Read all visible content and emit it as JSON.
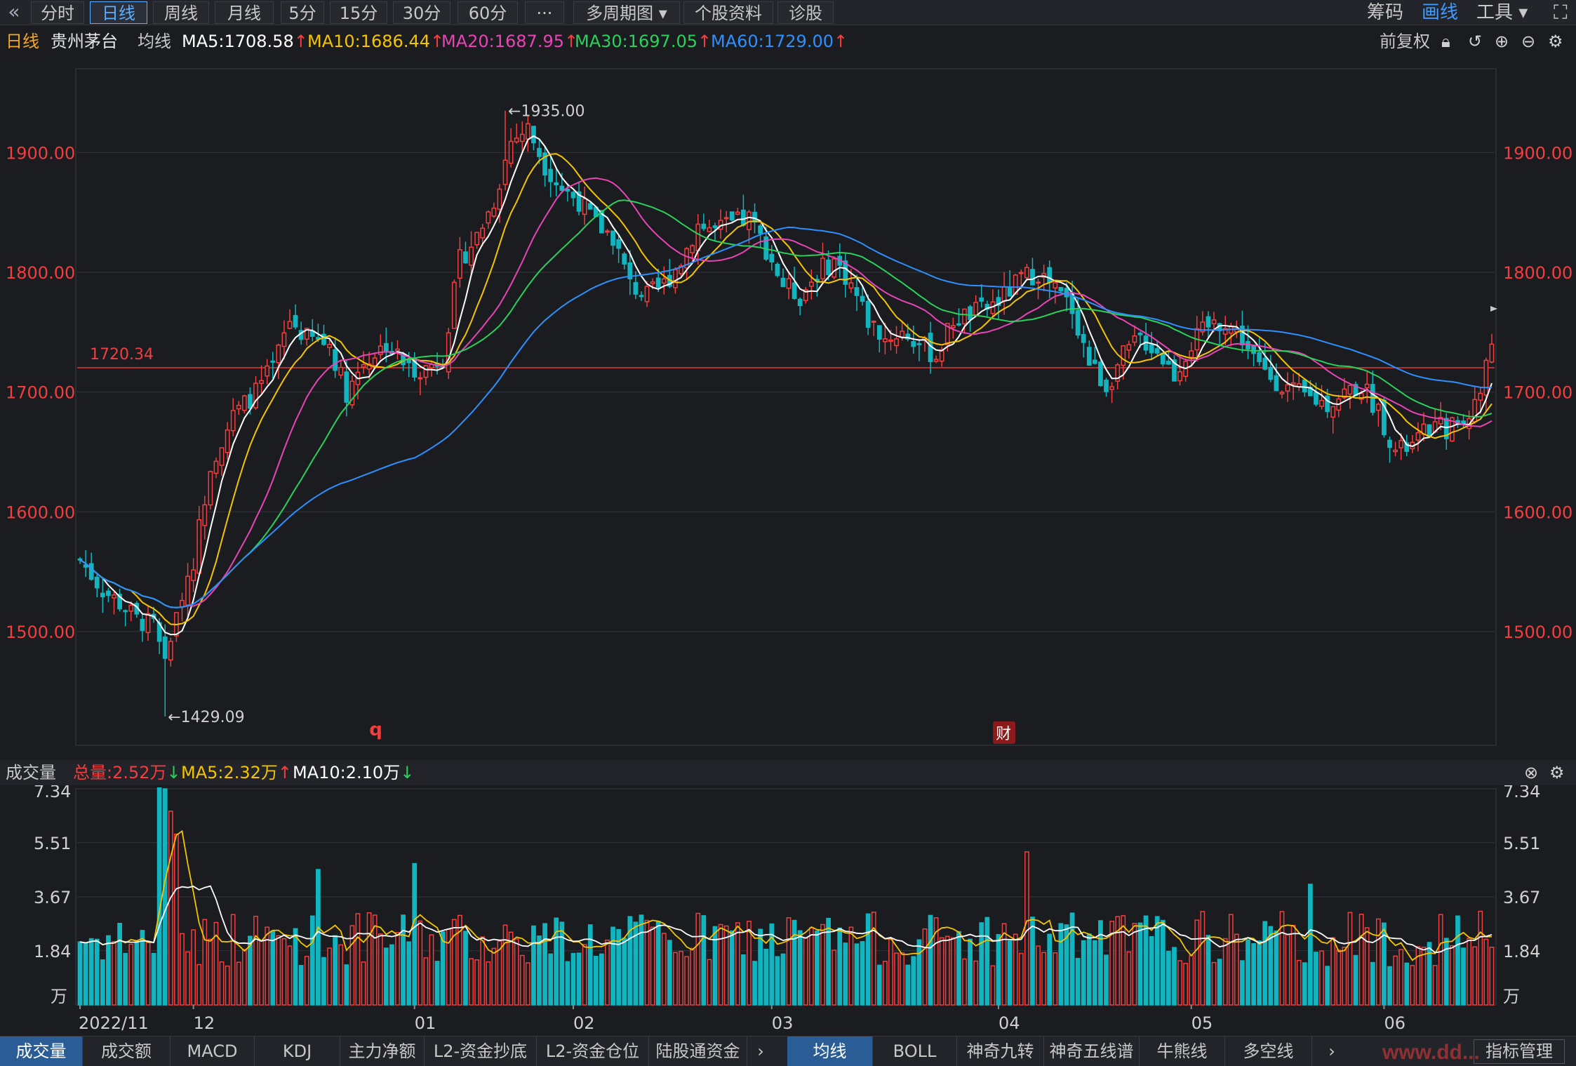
{
  "toolbar": {
    "back_icon": "double-chevron-left-icon",
    "periods": [
      "分时",
      "日线",
      "周线",
      "月线",
      "5分",
      "15分",
      "30分",
      "60分",
      "···",
      "多周期图 ▾",
      "个股资料",
      "诊股"
    ],
    "active_period": "日线",
    "right": [
      "筹码",
      "画线",
      "工具 ▾"
    ],
    "fullscreen_icon": "expand-icon"
  },
  "info": {
    "period": "日线",
    "stock_name": "贵州茅台",
    "ma_label": "均线",
    "ma5": "MA5:1708.58",
    "ma10": "MA10:1686.44",
    "ma20": "MA20:1687.95",
    "ma30": "MA30:1697.05",
    "ma60": "MA60:1729.00",
    "adjust": "前复权",
    "icons": [
      "lock-icon",
      "undo-icon",
      "zoom-in-icon",
      "zoom-out-icon",
      "settings-icon"
    ]
  },
  "volume_info": {
    "label": "成交量",
    "total": "总量:2.52万",
    "ma5": "MA5:2.32万",
    "ma10": "MA10:2.10万",
    "icons": [
      "close-icon",
      "settings-icon"
    ]
  },
  "bottom_tabs_left": [
    "成交量",
    "成交额",
    "MACD",
    "KDJ",
    "主力净额",
    "L2-资金抄底",
    "L2-资金仓位",
    "陆股通资金"
  ],
  "bottom_tabs_right": [
    "均线",
    "BOLL",
    "神奇九转",
    "神奇五线谱",
    "牛熊线",
    "多空线"
  ],
  "bottom_right_button": "指标管理",
  "watermark": "www.dd...",
  "colors": {
    "up": "#f23e3e",
    "down": "#12b5bf",
    "ma5": "#ffffff",
    "ma10": "#f5c400",
    "ma20": "#e844b6",
    "ma30": "#2ad15a",
    "ma60": "#2e90ff",
    "ref_line": "#e03a3a"
  },
  "chart_data": {
    "type": "candlestick",
    "title": "贵州茅台 日线",
    "price_axis": {
      "ticks": [
        1500,
        1600,
        1700,
        1800,
        1900
      ],
      "tick_labels": [
        "1500.00",
        "1600.00",
        "1700.00",
        "1800.00",
        "1900.00"
      ],
      "range": [
        1405,
        1970
      ]
    },
    "volume_axis": {
      "ticks": [
        0,
        1.84,
        3.67,
        5.51,
        7.34
      ],
      "tick_labels": [
        "万",
        "1.84",
        "3.67",
        "5.51",
        "7.34"
      ],
      "unit": "万",
      "range": [
        0,
        7.34
      ]
    },
    "x_labels": [
      {
        "label": "2022/11",
        "index": 0
      },
      {
        "label": "12",
        "index": 20
      },
      {
        "label": "01",
        "index": 59
      },
      {
        "label": "02",
        "index": 87
      },
      {
        "label": "03",
        "index": 122
      },
      {
        "label": "04",
        "index": 162
      },
      {
        "label": "05",
        "index": 196
      },
      {
        "label": "06",
        "index": 230
      }
    ],
    "annotations": [
      {
        "text": "←1935.00",
        "index": 75,
        "price": 1935
      },
      {
        "text": "←1429.09",
        "index": 15,
        "price": 1429.09
      },
      {
        "text": "1720.34",
        "type": "horizontal_line",
        "price": 1720.34
      }
    ],
    "event_markers": [
      {
        "text": "q",
        "index": 52
      },
      {
        "text": "财",
        "index": 163
      }
    ],
    "candles": []
  }
}
